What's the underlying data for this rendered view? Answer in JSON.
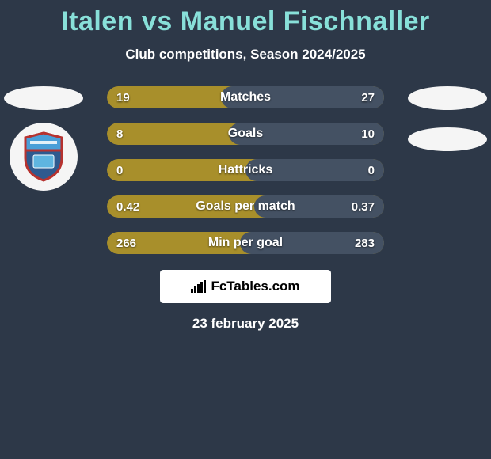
{
  "background_color": "#2d3848",
  "title": {
    "text": "Italen vs Manuel Fischnaller",
    "color": "#88e0d9",
    "fontsize": 34
  },
  "subtitle": {
    "text": "Club competitions, Season 2024/2025",
    "color": "#ffffff",
    "fontsize": 17
  },
  "left_badges": {
    "flag_bg": "#f5f5f5",
    "club_bg": "#f5f5f5",
    "shield_border": "#b6322f",
    "shield_top": "#4a9fd8",
    "shield_bottom": "#2e5a8f"
  },
  "right_badges": {
    "flag_bg": "#f5f5f5",
    "club_bg": "#f5f5f5"
  },
  "bars": {
    "left_color": "#a88f2b",
    "right_color": "#445163",
    "label_color": "#ffffff",
    "value_color": "#ffffff",
    "height": 28,
    "radius": 14,
    "items": [
      {
        "label": "Matches",
        "left": "19",
        "right": "27",
        "left_pct": 41
      },
      {
        "label": "Goals",
        "left": "8",
        "right": "10",
        "left_pct": 44
      },
      {
        "label": "Hattricks",
        "left": "0",
        "right": "0",
        "left_pct": 50
      },
      {
        "label": "Goals per match",
        "left": "0.42",
        "right": "0.37",
        "left_pct": 53
      },
      {
        "label": "Min per goal",
        "left": "266",
        "right": "283",
        "left_pct": 48
      }
    ]
  },
  "branding": {
    "text": "FcTables.com",
    "bg": "#ffffff",
    "color": "#000000"
  },
  "date": {
    "text": "23 february 2025",
    "color": "#ffffff"
  }
}
